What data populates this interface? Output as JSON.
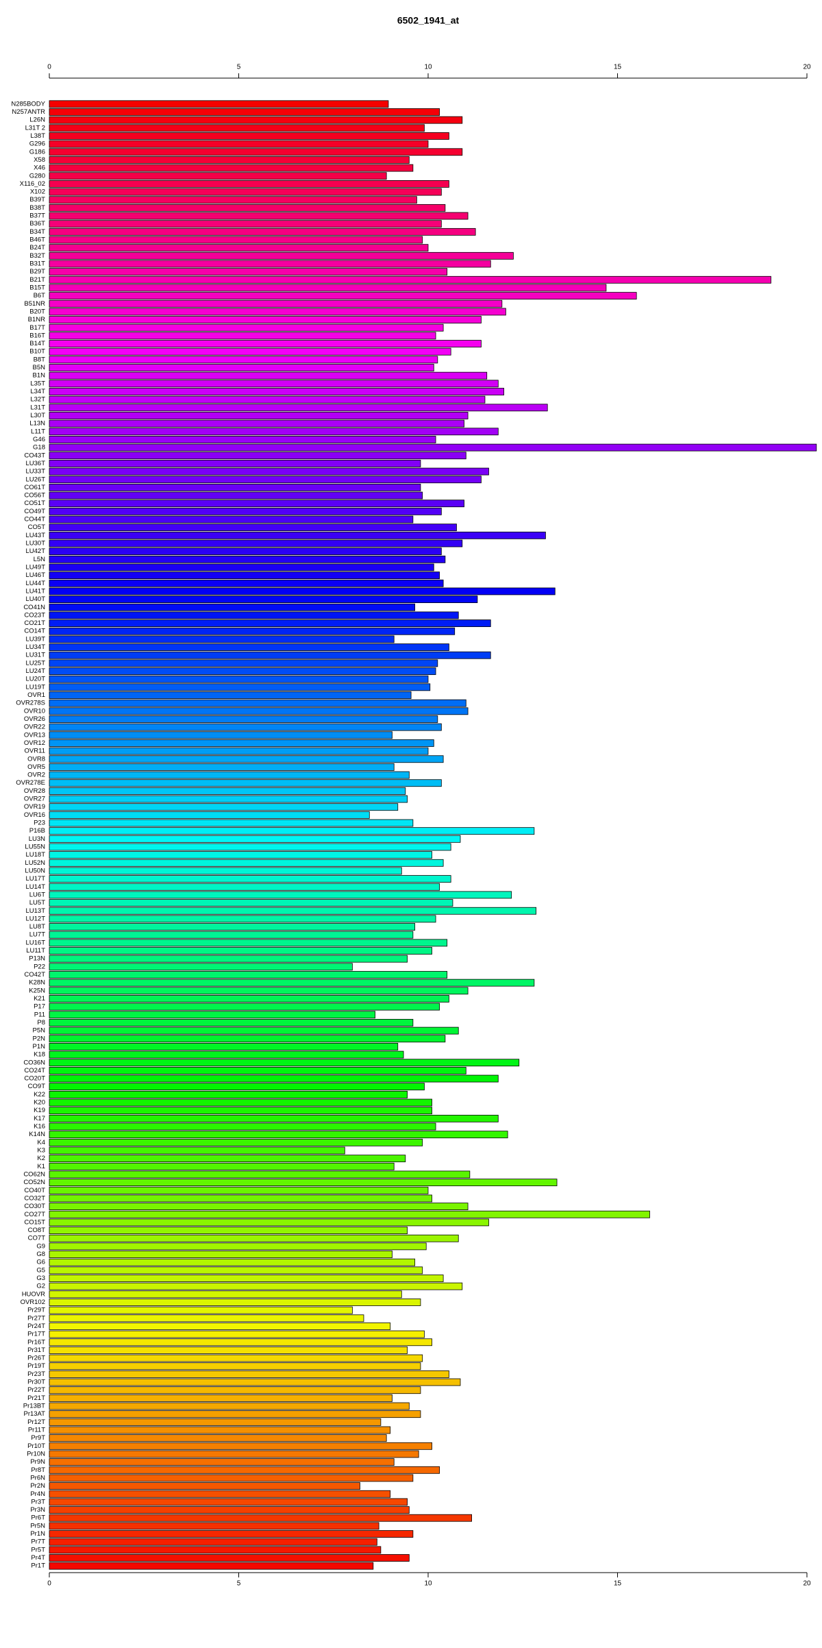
{
  "chart_data": {
    "type": "barh",
    "title": "6502_1941_at",
    "categories": [
      "N285BODY",
      "N257ANTR",
      "L26N",
      "L31T 2",
      "L38T",
      "G296",
      "G186",
      "X58",
      "X46",
      "G280",
      "X116_02",
      "X102",
      "B39T",
      "B38T",
      "B37T",
      "B36T",
      "B34T",
      "B46T",
      "B24T",
      "B32T",
      "B31T",
      "B29T",
      "B21T",
      "B15T",
      "B6T",
      "B51NR",
      "B20T",
      "B1NR",
      "B17T",
      "B16T",
      "B14T",
      "B10T",
      "B8T",
      "B5N",
      "B1N",
      "L35T",
      "L34T",
      "L32T",
      "L31T",
      "L30T",
      "L13N",
      "L11T",
      "G46",
      "G18",
      "CO43T",
      "LU36T",
      "LU33T",
      "LU26T",
      "CO61T",
      "CO56T",
      "CO51T",
      "CO49T",
      "CO44T",
      "CO5T",
      "LU43T",
      "LU30T",
      "LU42T",
      "L5N",
      "LU49T",
      "LU46T",
      "LU44T",
      "LU41T",
      "LU40T",
      "CO41N",
      "CO23T",
      "CO21T",
      "CO14T",
      "LU39T",
      "LU34T",
      "LU31T",
      "LU25T",
      "LU24T",
      "LU20T",
      "LU19T",
      "OVR1",
      "OVR278S",
      "OVR10",
      "OVR26",
      "OVR22",
      "OVR13",
      "OVR12",
      "OVR11",
      "OVR8",
      "OVR5",
      "OVR2",
      "OVR278E",
      "OVR28",
      "OVR27",
      "OVR19",
      "OVR16",
      "P23",
      "P16B",
      "LU3N",
      "LU55N",
      "LU18T",
      "LU52N",
      "LU50N",
      "LU17T",
      "LU14T",
      "LU6T",
      "LU5T",
      "LU13T",
      "LU12T",
      "LU8T",
      "LU7T",
      "LU16T",
      "LU11T",
      "P13N",
      "P22",
      "CO42T",
      "K28N",
      "K25N",
      "K21",
      "P17",
      "P11",
      "P8",
      "P5N",
      "P2N",
      "P1N",
      "K18",
      "CO36N",
      "CO24T",
      "CO20T",
      "CO9T",
      "K22",
      "K20",
      "K19",
      "K17",
      "K16",
      "K14N",
      "K4",
      "K3",
      "K2",
      "K1",
      "CO62N",
      "CO52N",
      "CO40T",
      "CO32T",
      "CO30T",
      "CO27T",
      "CO15T",
      "CO8T",
      "CO7T",
      "G9",
      "G8",
      "G6",
      "G5",
      "G3",
      "G2",
      "HUOVR",
      "OVR102",
      "Pr29T",
      "Pr27T",
      "Pr24T",
      "Pr17T",
      "Pr16T",
      "Pr31T",
      "Pr26T",
      "Pr19T",
      "Pr23T",
      "Pr30T",
      "Pr22T",
      "Pr21T",
      "Pr13BT",
      "Pr13AT",
      "Pr12T",
      "Pr11T",
      "Pr9T",
      "Pr10T",
      "Pr10N",
      "Pr9N",
      "Pr8T",
      "Pr6N",
      "Pr2N",
      "Pr4N",
      "Pr3T",
      "Pr3N",
      "Pr6T",
      "Pr5N",
      "Pr1N",
      "Pr7T",
      "Pr5T",
      "Pr4T",
      "Pr1T"
    ],
    "values": [
      8.95,
      10.3,
      10.9,
      9.9,
      10.55,
      10.0,
      10.9,
      9.5,
      9.6,
      8.9,
      10.55,
      10.35,
      9.7,
      10.45,
      11.05,
      10.35,
      11.25,
      9.85,
      10.0,
      12.25,
      11.65,
      10.5,
      19.05,
      14.7,
      15.5,
      11.95,
      12.05,
      11.4,
      10.4,
      10.2,
      11.4,
      10.6,
      10.25,
      10.15,
      11.55,
      11.85,
      12.0,
      11.5,
      13.15,
      11.05,
      10.95,
      11.85,
      10.2,
      20.25,
      11.0,
      9.8,
      11.6,
      11.4,
      9.8,
      9.85,
      10.95,
      10.35,
      9.6,
      10.75,
      13.1,
      10.9,
      10.35,
      10.45,
      10.15,
      10.3,
      10.4,
      13.35,
      11.3,
      9.65,
      10.8,
      11.65,
      10.7,
      9.1,
      10.55,
      11.65,
      10.25,
      10.2,
      10.0,
      10.05,
      9.55,
      11.0,
      11.05,
      10.25,
      10.35,
      9.05,
      10.15,
      10.0,
      10.4,
      9.1,
      9.5,
      10.35,
      9.4,
      9.45,
      9.2,
      8.45,
      9.6,
      12.8,
      10.85,
      10.6,
      10.1,
      10.4,
      9.3,
      10.6,
      10.3,
      12.2,
      10.65,
      12.85,
      10.2,
      9.65,
      9.6,
      10.5,
      10.1,
      9.45,
      8.0,
      10.5,
      12.8,
      11.05,
      10.55,
      10.3,
      8.6,
      9.6,
      10.8,
      10.45,
      9.2,
      9.35,
      12.4,
      11.0,
      11.85,
      9.9,
      9.45,
      10.1,
      10.1,
      11.85,
      10.2,
      12.1,
      9.85,
      7.8,
      9.4,
      9.1,
      11.1,
      13.4,
      10.0,
      10.1,
      11.05,
      15.85,
      11.6,
      9.45,
      10.8,
      9.95,
      9.05,
      9.65,
      9.85,
      10.4,
      10.9,
      9.3,
      9.8,
      8.0,
      8.3,
      9.0,
      9.9,
      10.1,
      9.45,
      9.85,
      9.8,
      10.55,
      10.85,
      9.8,
      9.05,
      9.5,
      9.8,
      8.75,
      9.0,
      8.9,
      10.1,
      9.75,
      9.1,
      10.3,
      9.6,
      8.2,
      9.0,
      9.45,
      9.5,
      11.15,
      8.7,
      9.6,
      8.65,
      8.75,
      9.5,
      8.55
    ],
    "palette": "rainbow-reverse",
    "xlim": [
      0,
      20
    ],
    "xticks": [
      0,
      5,
      10,
      15,
      20
    ]
  }
}
